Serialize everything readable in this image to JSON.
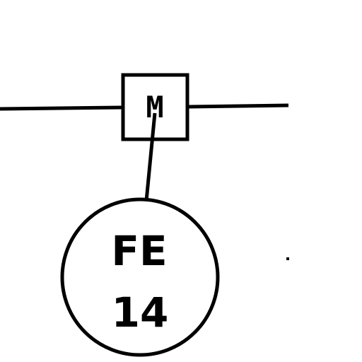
{
  "diagram": {
    "meter": {
      "letter": "M"
    },
    "instrument": {
      "function": "FE",
      "number": "14"
    },
    "colors": {
      "line": "#000000",
      "background": "#ffffff"
    }
  }
}
